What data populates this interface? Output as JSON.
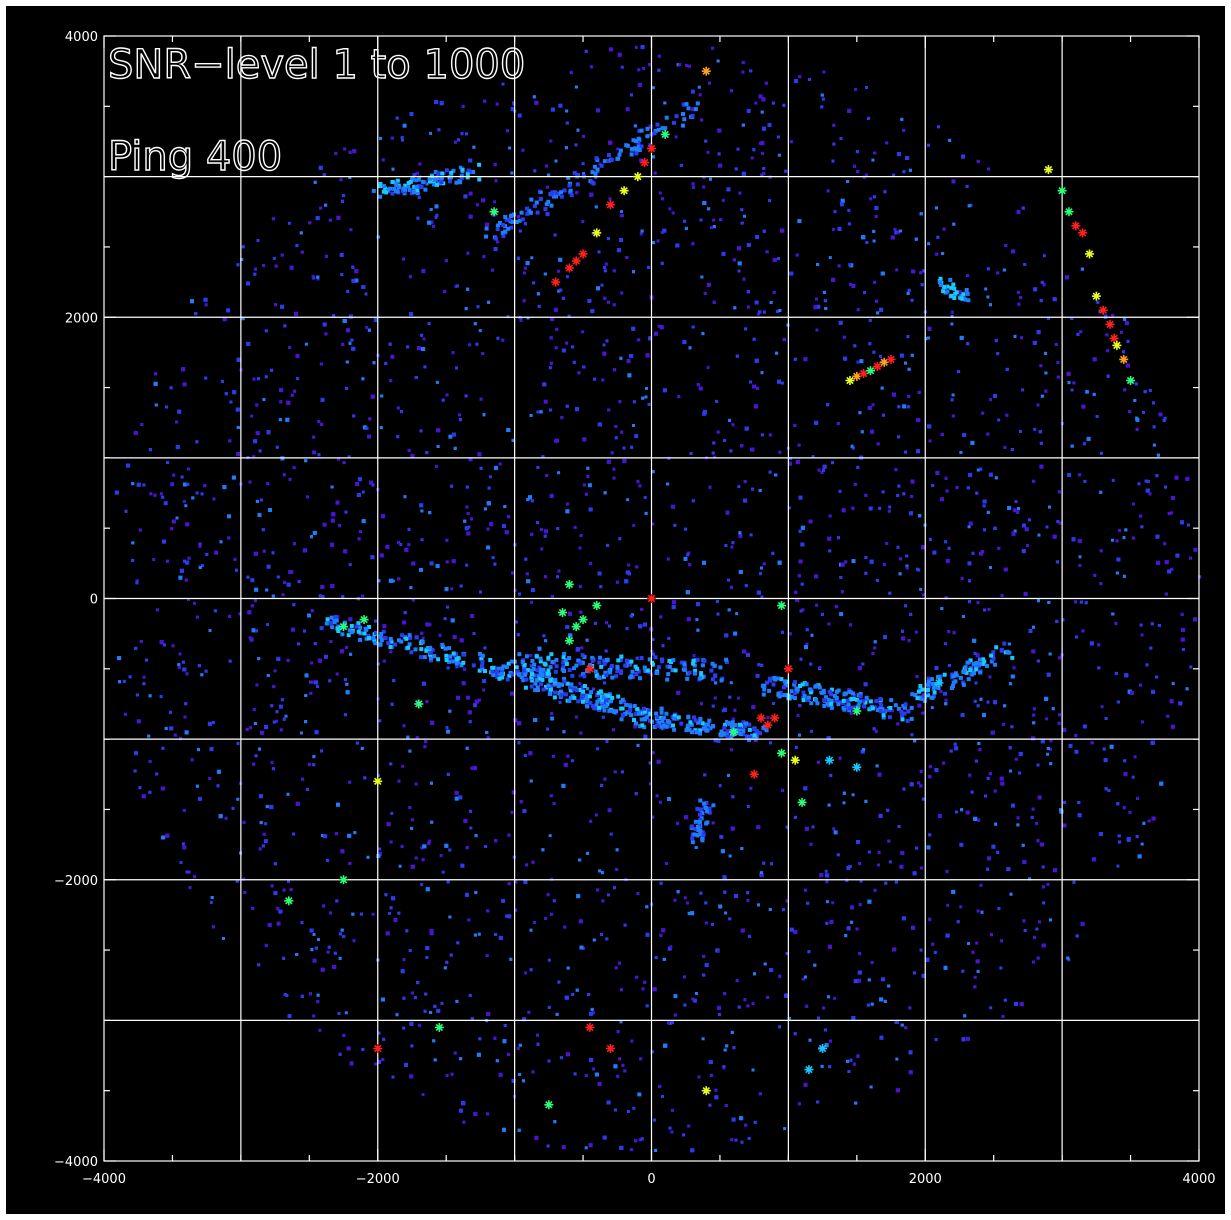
{
  "chart_data": {
    "type": "scatter",
    "title": "",
    "xlabel": "",
    "ylabel": "",
    "xlim": [
      -4000,
      4000
    ],
    "ylim": [
      -4000,
      4000
    ],
    "grid": true,
    "x_ticks": [
      -4000,
      -2000,
      0,
      2000,
      4000
    ],
    "y_ticks": [
      -4000,
      -2000,
      0,
      2000,
      4000
    ],
    "x_tick_labels": [
      "−4000",
      "−2000",
      "0",
      "2000",
      "4000"
    ],
    "y_tick_labels": [
      "−4000",
      "−2000",
      "0",
      "2000",
      "4000"
    ],
    "grid_step": 1000,
    "annotations": [
      "SNR−level 1 to 1000",
      "Ping 400"
    ],
    "snr_range": [
      1,
      1000
    ],
    "colors": {
      "background": "#000000",
      "frame": "#ffffff",
      "grid": "#ffffff",
      "noise_low": "#4a14d8",
      "noise_mid": "#2a3cf0",
      "medium": "#1e7cff",
      "cyan": "#19c8ff",
      "green": "#2cff7a",
      "yellow": "#e8ff20",
      "orange": "#ffa020",
      "red": "#ff2020"
    },
    "series": [
      {
        "marker": "asterisk",
        "points": [
          [
            0,
            0,
            "red"
          ],
          [
            -700,
            2250,
            "red"
          ],
          [
            -600,
            2350,
            "red"
          ],
          [
            -550,
            2400,
            "red"
          ],
          [
            -500,
            2450,
            "red"
          ],
          [
            -400,
            2600,
            "yellow"
          ],
          [
            -300,
            2800,
            "red"
          ],
          [
            -200,
            2900,
            "yellow"
          ],
          [
            -100,
            3000,
            "yellow"
          ],
          [
            -50,
            3100,
            "red"
          ],
          [
            0,
            3200,
            "red"
          ],
          [
            100,
            3300,
            "green"
          ],
          [
            400,
            3750,
            "orange"
          ],
          [
            -1150,
            2750,
            "green"
          ],
          [
            2900,
            3050,
            "yellow"
          ],
          [
            3000,
            2900,
            "green"
          ],
          [
            3050,
            2750,
            "green"
          ],
          [
            3100,
            2650,
            "red"
          ],
          [
            3150,
            2600,
            "red"
          ],
          [
            3200,
            2450,
            "yellow"
          ],
          [
            3250,
            2150,
            "yellow"
          ],
          [
            3300,
            2050,
            "red"
          ],
          [
            3350,
            1950,
            "red"
          ],
          [
            3380,
            1850,
            "red"
          ],
          [
            3400,
            1800,
            "yellow"
          ],
          [
            3450,
            1700,
            "orange"
          ],
          [
            3500,
            1550,
            "green"
          ],
          [
            1450,
            1550,
            "yellow"
          ],
          [
            1500,
            1580,
            "orange"
          ],
          [
            1550,
            1600,
            "red"
          ],
          [
            1600,
            1620,
            "green"
          ],
          [
            1650,
            1650,
            "red"
          ],
          [
            1700,
            1680,
            "orange"
          ],
          [
            1750,
            1700,
            "red"
          ],
          [
            -550,
            -200,
            "green"
          ],
          [
            -600,
            -300,
            "green"
          ],
          [
            -650,
            -100,
            "green"
          ],
          [
            -500,
            -150,
            "green"
          ],
          [
            -400,
            -50,
            "green"
          ],
          [
            -450,
            -500,
            "red"
          ],
          [
            -600,
            100,
            "green"
          ],
          [
            800,
            -850,
            "red"
          ],
          [
            850,
            -900,
            "red"
          ],
          [
            900,
            -850,
            "red"
          ],
          [
            750,
            -1250,
            "red"
          ],
          [
            1000,
            -500,
            "red"
          ],
          [
            1050,
            -1150,
            "yellow"
          ],
          [
            1100,
            -1450,
            "green"
          ],
          [
            950,
            -1100,
            "green"
          ],
          [
            1300,
            -1150,
            "cyan"
          ],
          [
            1500,
            -1200,
            "cyan"
          ],
          [
            -2000,
            -1300,
            "yellow"
          ],
          [
            -2250,
            -2000,
            "green"
          ],
          [
            -2650,
            -2150,
            "green"
          ],
          [
            -2000,
            -3200,
            "red"
          ],
          [
            -1550,
            -3050,
            "green"
          ],
          [
            -450,
            -3050,
            "red"
          ],
          [
            -300,
            -3200,
            "red"
          ],
          [
            -750,
            -3600,
            "green"
          ],
          [
            400,
            -3500,
            "yellow"
          ],
          [
            1150,
            -3350,
            "cyan"
          ],
          [
            1250,
            -3200,
            "cyan"
          ],
          [
            -2250,
            -200,
            "green"
          ],
          [
            -2100,
            -150,
            "green"
          ],
          [
            -1700,
            -750,
            "green"
          ],
          [
            2100,
            -600,
            "cyan"
          ],
          [
            600,
            -950,
            "green"
          ],
          [
            950,
            -50,
            "green"
          ],
          [
            1500,
            -800,
            "green"
          ]
        ]
      }
    ]
  }
}
